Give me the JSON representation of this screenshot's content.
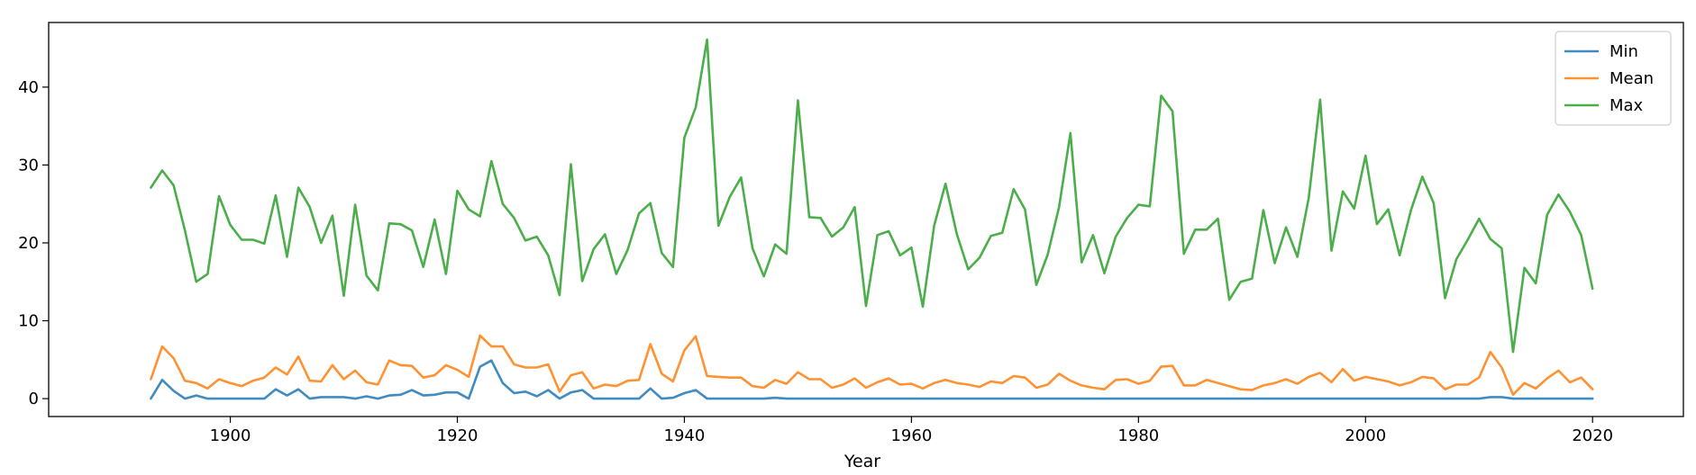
{
  "chart_data": {
    "type": "line",
    "title": "",
    "xlabel": "Year",
    "ylabel": "",
    "xlim": [
      1884,
      2028
    ],
    "ylim": [
      -2.3,
      48.3
    ],
    "xticks": [
      1900,
      1920,
      1940,
      1960,
      1980,
      2000,
      2020
    ],
    "yticks": [
      0,
      10,
      20,
      30,
      40
    ],
    "grid": false,
    "legend": "top-right",
    "x": [
      1893,
      1894,
      1895,
      1896,
      1897,
      1898,
      1899,
      1900,
      1901,
      1902,
      1903,
      1904,
      1905,
      1906,
      1907,
      1908,
      1909,
      1910,
      1911,
      1912,
      1913,
      1914,
      1915,
      1916,
      1917,
      1918,
      1919,
      1920,
      1921,
      1922,
      1923,
      1924,
      1925,
      1926,
      1927,
      1928,
      1929,
      1930,
      1931,
      1932,
      1933,
      1934,
      1935,
      1936,
      1937,
      1938,
      1939,
      1940,
      1941,
      1942,
      1943,
      1944,
      1945,
      1946,
      1947,
      1948,
      1949,
      1950,
      1951,
      1952,
      1953,
      1954,
      1955,
      1956,
      1957,
      1958,
      1959,
      1960,
      1961,
      1962,
      1963,
      1964,
      1965,
      1966,
      1967,
      1968,
      1969,
      1970,
      1971,
      1972,
      1973,
      1974,
      1975,
      1976,
      1977,
      1978,
      1979,
      1980,
      1981,
      1982,
      1983,
      1984,
      1985,
      1986,
      1987,
      1988,
      1989,
      1990,
      1991,
      1992,
      1993,
      1994,
      1995,
      1996,
      1997,
      1998,
      1999,
      2000,
      2001,
      2002,
      2003,
      2004,
      2005,
      2006,
      2007,
      2008,
      2009,
      2010,
      2011,
      2012,
      2013,
      2014,
      2015,
      2016,
      2017,
      2018,
      2019,
      2020
    ],
    "series": [
      {
        "name": "Min",
        "color": "#1f77b4",
        "values": [
          0,
          2.4,
          1,
          0,
          0.4,
          0,
          0,
          0,
          0,
          0,
          0,
          1.2,
          0.4,
          1.2,
          0,
          0.2,
          0.2,
          0.2,
          0,
          0.3,
          0,
          0.4,
          0.5,
          1.1,
          0.4,
          0.5,
          0.8,
          0.8,
          0,
          4.1,
          4.9,
          2,
          0.7,
          0.9,
          0.3,
          1.1,
          0,
          0.8,
          1.1,
          0,
          0,
          0,
          0,
          0,
          1.3,
          0,
          0.1,
          0.7,
          1.1,
          0,
          0,
          0,
          0,
          0,
          0,
          0.1,
          0,
          0,
          0,
          0,
          0,
          0,
          0,
          0,
          0,
          0,
          0,
          0,
          0,
          0,
          0,
          0,
          0,
          0,
          0,
          0,
          0,
          0,
          0,
          0,
          0,
          0,
          0,
          0,
          0,
          0,
          0,
          0,
          0,
          0,
          0,
          0,
          0,
          0,
          0,
          0,
          0,
          0,
          0,
          0,
          0,
          0,
          0,
          0,
          0,
          0,
          0,
          0,
          0,
          0,
          0,
          0,
          0,
          0,
          0,
          0,
          0,
          0,
          0.2,
          0.2,
          0,
          0,
          0,
          0,
          0,
          0,
          0,
          0
        ]
      },
      {
        "name": "Mean",
        "color": "#ff7f0e",
        "values": [
          2.5,
          6.7,
          5.2,
          2.3,
          2,
          1.3,
          2.5,
          2,
          1.6,
          2.3,
          2.7,
          4,
          3.1,
          5.4,
          2.3,
          2.2,
          4.3,
          2.5,
          3.6,
          2.1,
          1.8,
          4.9,
          4.3,
          4.2,
          2.7,
          3,
          4.3,
          3.7,
          2.8,
          8.1,
          6.7,
          6.7,
          4.4,
          4,
          4,
          4.4,
          0.9,
          3,
          3.4,
          1.3,
          1.8,
          1.6,
          2.3,
          2.4,
          7,
          3.2,
          2.2,
          6.2,
          8,
          2.9,
          2.8,
          2.7,
          2.7,
          1.6,
          1.4,
          2.4,
          1.9,
          3.4,
          2.5,
          2.5,
          1.4,
          1.8,
          2.6,
          1.4,
          2.1,
          2.6,
          1.8,
          1.9,
          1.3,
          2,
          2.4,
          2,
          1.8,
          1.5,
          2.2,
          2,
          2.9,
          2.7,
          1.4,
          1.8,
          3.2,
          2.3,
          1.7,
          1.4,
          1.2,
          2.4,
          2.5,
          1.9,
          2.3,
          4.1,
          4.2,
          1.7,
          1.7,
          2.4,
          2,
          1.6,
          1.2,
          1.1,
          1.7,
          2,
          2.5,
          1.9,
          2.8,
          3.3,
          2.1,
          3.8,
          2.3,
          2.8,
          2.5,
          2.2,
          1.7,
          2.1,
          2.8,
          2.6,
          1.2,
          1.8,
          1.8,
          2.7,
          6,
          4,
          0.5,
          2,
          1.3,
          2.6,
          3.6,
          2.1,
          2.7,
          1.2
        ]
      },
      {
        "name": "Max",
        "color": "#2ca02c",
        "values": [
          27.1,
          29.3,
          27.4,
          21.6,
          15,
          16,
          26,
          22.3,
          20.4,
          20.4,
          19.9,
          26.1,
          18.2,
          27.1,
          24.6,
          20,
          23.5,
          13.2,
          24.9,
          15.8,
          13.9,
          22.5,
          22.4,
          21.6,
          16.9,
          23,
          16,
          26.7,
          24.3,
          23.4,
          30.5,
          25,
          23.2,
          20.3,
          20.8,
          18.4,
          13.3,
          30.1,
          15.1,
          19.2,
          21.1,
          16,
          19.1,
          23.8,
          25.1,
          18.7,
          16.9,
          33.5,
          37.4,
          46.1,
          22.2,
          25.9,
          28.4,
          19.3,
          15.7,
          19.8,
          18.6,
          38.3,
          23.3,
          23.2,
          20.8,
          22,
          24.6,
          11.9,
          21,
          21.5,
          18.4,
          19.4,
          11.8,
          22.2,
          27.6,
          21.1,
          16.6,
          18.1,
          20.9,
          21.3,
          26.9,
          24.3,
          14.6,
          18.5,
          24.6,
          34.1,
          17.5,
          21,
          16.1,
          20.8,
          23.2,
          24.9,
          24.7,
          38.9,
          36.9,
          18.6,
          21.7,
          21.7,
          23.1,
          12.7,
          15,
          15.4,
          24.2,
          17.4,
          22,
          18.2,
          25.8,
          38.4,
          19,
          26.6,
          24.4,
          31.2,
          22.4,
          24.3,
          18.4,
          24.2,
          28.5,
          25.1,
          12.9,
          17.9,
          20.4,
          23.1,
          20.5,
          19.3,
          6,
          16.8,
          14.8,
          23.6,
          26.2,
          24,
          21,
          14.1
        ]
      }
    ]
  }
}
